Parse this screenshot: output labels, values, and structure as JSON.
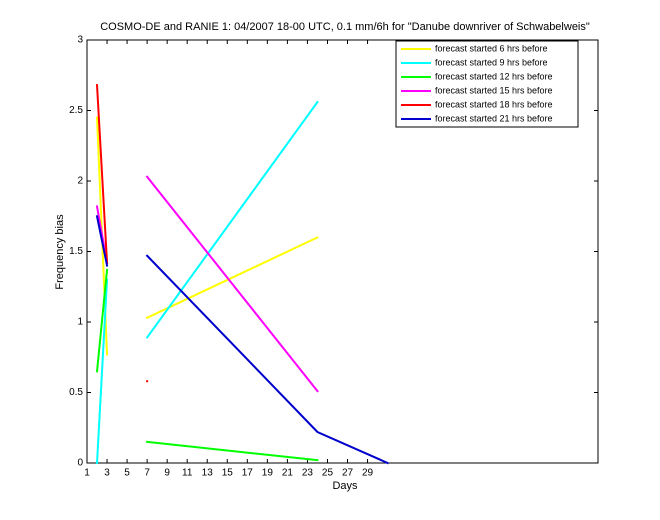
{
  "chart_data": {
    "type": "line",
    "title": "COSMO-DE and RANIE 1: 04/2007 18-00 UTC, 0.1 mm/6h for \"Danube downriver of Schwabelweis\"",
    "x_label": "Days",
    "y_label": "Frequency bias",
    "x": [
      2,
      3,
      5,
      7,
      24,
      31
    ],
    "series": [
      {
        "name": "forecast started 6 hrs before",
        "color": "#ffff00",
        "values": [
          2.45,
          0.77,
          null,
          1.03,
          1.6,
          null
        ]
      },
      {
        "name": "forecast started 9 hrs before",
        "color": "#00ffff",
        "values": [
          0.0,
          1.3,
          null,
          0.89,
          2.56,
          null
        ]
      },
      {
        "name": "forecast started 12 hrs before",
        "color": "#00ff00",
        "values": [
          0.65,
          1.37,
          null,
          0.15,
          0.02,
          null
        ]
      },
      {
        "name": "forecast started 15 hrs before",
        "color": "#ff00ff",
        "values": [
          1.82,
          1.42,
          null,
          2.03,
          0.51,
          null
        ]
      },
      {
        "name": "forecast started 18 hrs before",
        "color": "#ff0000",
        "values": [
          2.68,
          1.42,
          null,
          0.58,
          null,
          null
        ]
      },
      {
        "name": "forecast started 21 hrs before",
        "color": "#0000cc",
        "values": [
          1.75,
          1.4,
          null,
          1.47,
          0.22,
          0.0
        ]
      }
    ],
    "xlim": [
      1,
      52
    ],
    "xticks": [
      1,
      3,
      5,
      7,
      9,
      11,
      13,
      15,
      17,
      19,
      21,
      23,
      25,
      27,
      29
    ],
    "ylim": [
      0,
      3
    ],
    "yticks": [
      0,
      0.5,
      1,
      1.5,
      2,
      2.5,
      3
    ],
    "legend": "upper right"
  }
}
